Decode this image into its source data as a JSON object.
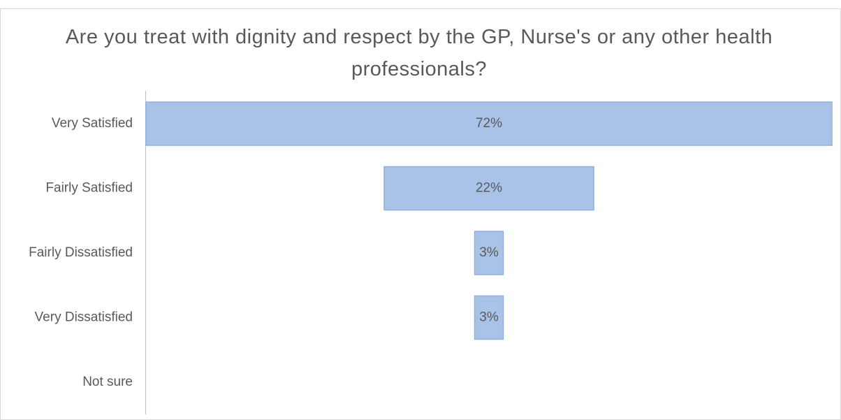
{
  "chart_data": {
    "type": "funnel",
    "title": "Are you treat with dignity and respect by the GP, Nurse's or any other health professionals?",
    "categories": [
      "Very Satisfied",
      "Fairly Satisfied",
      "Fairly Dissatisfied",
      "Very Dissatisfied",
      "Not sure"
    ],
    "values": [
      72,
      22,
      3,
      3,
      0
    ],
    "value_labels": [
      "72%",
      "22%",
      "3%",
      "3%",
      null
    ],
    "color": "#a9c3e8"
  }
}
